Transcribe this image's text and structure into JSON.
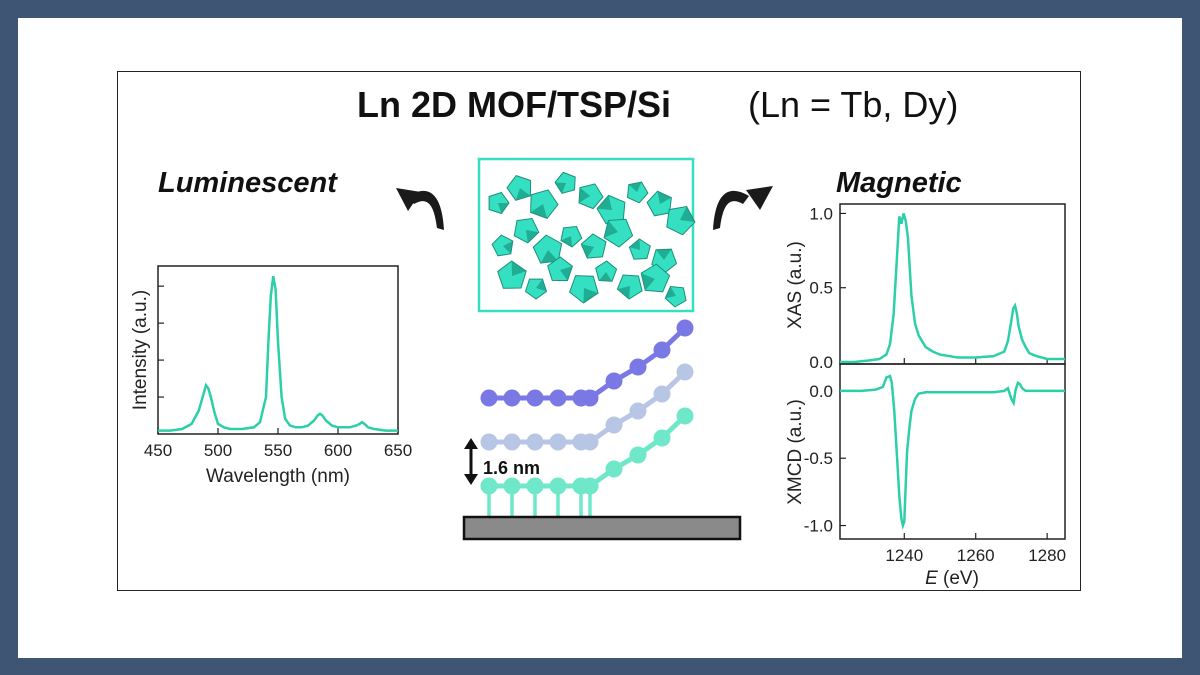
{
  "title": {
    "main": "Ln 2D MOF/TSP/Si",
    "sub": "(Ln = Tb, Dy)"
  },
  "labels": {
    "luminescent": "Luminescent",
    "magnetic": "Magnetic",
    "spacing": "1.6 nm"
  },
  "colors": {
    "slide_border": "#3e5673",
    "mof_teal": "#35e0c2",
    "spectrum_teal": "#2dcfa8",
    "chain_top": "#7a78e4",
    "chain_middle": "#b8c6e6",
    "chain_bottom": "#6ee8c8",
    "substrate": "#8a8a8a"
  },
  "chart_data": [
    {
      "id": "luminescence",
      "type": "line",
      "xlabel": "Wavelength (nm)",
      "ylabel": "Intensity (a.u.)",
      "xlim": [
        450,
        650
      ],
      "xticks": [
        "450",
        "500",
        "550",
        "600",
        "650"
      ],
      "ylim": [
        0,
        1
      ],
      "y_ticks_labeled": false,
      "series": [
        {
          "x": [
            450,
            460,
            470,
            478,
            484,
            488,
            490,
            492,
            494,
            497,
            500,
            505,
            510,
            520,
            530,
            535,
            540,
            542,
            544,
            546,
            548,
            550,
            553,
            556,
            560,
            565,
            570,
            575,
            580,
            583,
            585,
            587,
            590,
            595,
            600,
            605,
            610,
            615,
            618,
            620,
            622,
            625,
            630,
            640,
            650
          ],
          "y": [
            0.02,
            0.02,
            0.03,
            0.06,
            0.14,
            0.24,
            0.29,
            0.27,
            0.22,
            0.13,
            0.06,
            0.04,
            0.03,
            0.03,
            0.04,
            0.07,
            0.22,
            0.55,
            0.82,
            0.94,
            0.86,
            0.55,
            0.22,
            0.09,
            0.05,
            0.04,
            0.04,
            0.05,
            0.08,
            0.11,
            0.12,
            0.11,
            0.08,
            0.05,
            0.04,
            0.04,
            0.04,
            0.05,
            0.06,
            0.07,
            0.06,
            0.04,
            0.03,
            0.02,
            0.02
          ]
        }
      ]
    },
    {
      "id": "xas",
      "type": "line",
      "xlabel": "",
      "ylabel": "XAS (a.u.)",
      "xlim": [
        1222,
        1285
      ],
      "ylim": [
        0,
        1.05
      ],
      "yticks": [
        "0.0",
        "0.5",
        "1.0"
      ],
      "series": [
        {
          "x": [
            1222,
            1226,
            1230,
            1233,
            1235,
            1236,
            1237,
            1238,
            1238.6,
            1239.2,
            1239.8,
            1240.4,
            1241,
            1242,
            1243,
            1244,
            1245,
            1246,
            1248,
            1250,
            1255,
            1260,
            1265,
            1268,
            1269,
            1270,
            1270.5,
            1271,
            1271.5,
            1272,
            1273,
            1274,
            1275,
            1277,
            1280,
            1285
          ],
          "y": [
            0.0,
            0.0,
            0.01,
            0.02,
            0.05,
            0.12,
            0.32,
            0.72,
            0.98,
            0.93,
            1.0,
            0.95,
            0.84,
            0.45,
            0.26,
            0.18,
            0.14,
            0.1,
            0.07,
            0.05,
            0.03,
            0.03,
            0.04,
            0.07,
            0.14,
            0.28,
            0.36,
            0.38,
            0.33,
            0.24,
            0.15,
            0.1,
            0.06,
            0.04,
            0.02,
            0.02
          ]
        }
      ]
    },
    {
      "id": "xmcd",
      "type": "line",
      "xlabel": "E (eV)",
      "ylabel": "XMCD (a.u.)",
      "xlim": [
        1222,
        1285
      ],
      "ylim": [
        -1.1,
        0.2
      ],
      "xticks": [
        "1240",
        "1260",
        "1280"
      ],
      "yticks": [
        "0.0",
        "-0.5",
        "-1.0"
      ],
      "series": [
        {
          "x": [
            1222,
            1228,
            1232,
            1234,
            1235,
            1236,
            1236.5,
            1237.2,
            1238,
            1238.6,
            1239.2,
            1239.6,
            1240,
            1240.4,
            1240.8,
            1241.4,
            1242,
            1243,
            1244,
            1246,
            1250,
            1255,
            1260,
            1265,
            1268,
            1269,
            1270,
            1270.6,
            1271.2,
            1271.8,
            1272.4,
            1273,
            1274,
            1276,
            1280,
            1285
          ],
          "y": [
            0.0,
            0.0,
            0.01,
            0.03,
            0.1,
            0.11,
            0.06,
            -0.15,
            -0.5,
            -0.78,
            -0.95,
            -1.0,
            -0.97,
            -0.7,
            -0.45,
            -0.28,
            -0.15,
            -0.06,
            -0.02,
            -0.01,
            -0.01,
            -0.01,
            -0.01,
            -0.01,
            0.0,
            0.02,
            -0.06,
            -0.09,
            0.01,
            0.06,
            0.05,
            0.02,
            0.0,
            0.0,
            0.0,
            0.0
          ]
        }
      ]
    }
  ]
}
